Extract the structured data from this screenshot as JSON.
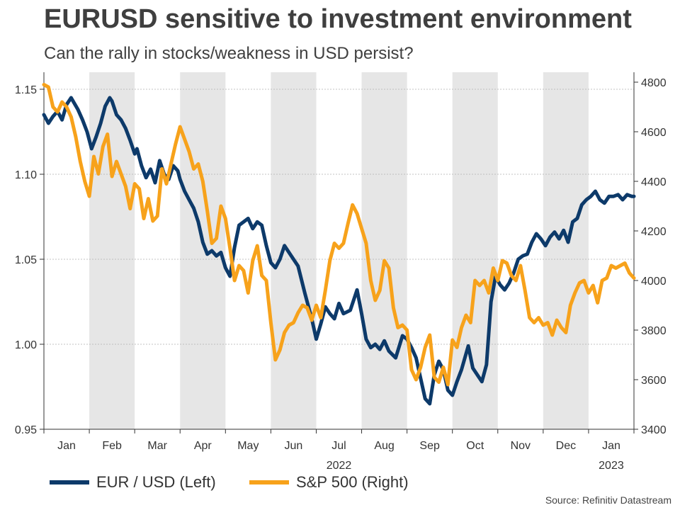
{
  "title": "EURUSD sensitive to investment environment",
  "subtitle": "Can the rally in stocks/weakness in USD persist?",
  "source": "Source: Refinitiv Datastream",
  "colors": {
    "eurusd": "#0d3a6a",
    "sp500": "#f7a21b",
    "band": "#e6e6e6",
    "grid": "#b0b0b0",
    "axis": "#333333"
  },
  "chart_data": {
    "type": "line",
    "months": [
      "Jan",
      "Feb",
      "Mar",
      "Apr",
      "May",
      "Jun",
      "Jul",
      "Aug",
      "Sep",
      "Oct",
      "Nov",
      "Dec",
      "Jan"
    ],
    "year_labels": [
      {
        "label": "2022",
        "month_index": 6
      },
      {
        "label": "2023",
        "month_index": 12
      }
    ],
    "left_axis": {
      "label": "EUR / USD (Left)",
      "ylim": [
        0.95,
        1.16
      ],
      "ticks": [
        "0.95",
        "1.00",
        "1.05",
        "1.10",
        "1.15"
      ]
    },
    "right_axis": {
      "label": "S&P 500 (Right)",
      "ylim": [
        3400,
        4840
      ],
      "ticks": [
        "3400",
        "3600",
        "3800",
        "4000",
        "4200",
        "4400",
        "4600",
        "4800"
      ]
    },
    "x_range": [
      0,
      13
    ],
    "series": [
      {
        "name": "EUR / USD (Left)",
        "axis": "left",
        "x": [
          0,
          0.1,
          0.2,
          0.3,
          0.4,
          0.5,
          0.6,
          0.75,
          0.85,
          0.95,
          1.05,
          1.15,
          1.25,
          1.35,
          1.45,
          1.5,
          1.6,
          1.7,
          1.8,
          1.9,
          2.0,
          2.05,
          2.15,
          2.25,
          2.35,
          2.45,
          2.55,
          2.65,
          2.75,
          2.85,
          2.95,
          3.0,
          3.1,
          3.2,
          3.3,
          3.4,
          3.5,
          3.6,
          3.7,
          3.8,
          3.9,
          4.0,
          4.1,
          4.2,
          4.3,
          4.4,
          4.5,
          4.6,
          4.7,
          4.8,
          4.9,
          5.0,
          5.1,
          5.2,
          5.3,
          5.45,
          5.6,
          5.75,
          5.9,
          6.0,
          6.1,
          6.2,
          6.3,
          6.4,
          6.5,
          6.6,
          6.75,
          6.9,
          7.0,
          7.1,
          7.2,
          7.3,
          7.4,
          7.5,
          7.6,
          7.75,
          7.9,
          8.0,
          8.1,
          8.2,
          8.3,
          8.4,
          8.5,
          8.6,
          8.7,
          8.8,
          8.9,
          9.0,
          9.1,
          9.2,
          9.35,
          9.45,
          9.55,
          9.65,
          9.75,
          9.85,
          9.95,
          10.05,
          10.15,
          10.25,
          10.35,
          10.45,
          10.55,
          10.65,
          10.75,
          10.85,
          10.95,
          11.05,
          11.15,
          11.25,
          11.35,
          11.45,
          11.55,
          11.65,
          11.75,
          11.85,
          11.95,
          12.05,
          12.15,
          12.25,
          12.35,
          12.45,
          12.55,
          12.65,
          12.75,
          12.85,
          12.95,
          13.0
        ],
        "values": [
          1.135,
          1.13,
          1.134,
          1.137,
          1.132,
          1.141,
          1.145,
          1.138,
          1.132,
          1.125,
          1.115,
          1.122,
          1.13,
          1.14,
          1.145,
          1.143,
          1.135,
          1.132,
          1.127,
          1.12,
          1.112,
          1.115,
          1.105,
          1.098,
          1.103,
          1.095,
          1.108,
          1.1,
          1.097,
          1.105,
          1.102,
          1.097,
          1.09,
          1.085,
          1.08,
          1.072,
          1.06,
          1.053,
          1.055,
          1.052,
          1.054,
          1.045,
          1.04,
          1.057,
          1.07,
          1.072,
          1.074,
          1.068,
          1.072,
          1.07,
          1.058,
          1.048,
          1.045,
          1.05,
          1.058,
          1.052,
          1.046,
          1.03,
          1.015,
          1.003,
          1.012,
          1.022,
          1.018,
          1.015,
          1.024,
          1.018,
          1.02,
          1.032,
          1.018,
          1.003,
          0.998,
          1.0,
          0.997,
          1.002,
          0.996,
          0.992,
          1.005,
          1.003,
          0.998,
          0.992,
          0.98,
          0.968,
          0.965,
          0.982,
          0.99,
          0.985,
          0.973,
          0.97,
          0.978,
          0.985,
          0.999,
          0.986,
          0.982,
          0.978,
          0.988,
          1.025,
          1.04,
          1.035,
          1.032,
          1.036,
          1.042,
          1.05,
          1.052,
          1.053,
          1.06,
          1.065,
          1.062,
          1.058,
          1.063,
          1.066,
          1.062,
          1.067,
          1.06,
          1.072,
          1.074,
          1.082,
          1.085,
          1.087,
          1.09,
          1.085,
          1.083,
          1.087,
          1.087,
          1.088,
          1.085,
          1.088,
          1.087,
          1.087
        ]
      },
      {
        "name": "S&P 500 (Right)",
        "axis": "right",
        "x": [
          0,
          0.1,
          0.2,
          0.3,
          0.4,
          0.5,
          0.6,
          0.7,
          0.8,
          0.9,
          1.0,
          1.1,
          1.2,
          1.3,
          1.4,
          1.5,
          1.6,
          1.7,
          1.8,
          1.9,
          2.0,
          2.1,
          2.2,
          2.3,
          2.4,
          2.5,
          2.6,
          2.7,
          2.8,
          2.9,
          3.0,
          3.1,
          3.2,
          3.3,
          3.4,
          3.5,
          3.6,
          3.7,
          3.8,
          3.9,
          4.0,
          4.1,
          4.2,
          4.3,
          4.4,
          4.5,
          4.6,
          4.7,
          4.8,
          4.9,
          5.0,
          5.1,
          5.2,
          5.3,
          5.4,
          5.5,
          5.6,
          5.7,
          5.8,
          5.9,
          6.0,
          6.1,
          6.2,
          6.3,
          6.4,
          6.5,
          6.6,
          6.7,
          6.8,
          6.9,
          7.0,
          7.1,
          7.2,
          7.3,
          7.4,
          7.5,
          7.6,
          7.7,
          7.8,
          7.9,
          8.0,
          8.1,
          8.2,
          8.3,
          8.4,
          8.5,
          8.6,
          8.7,
          8.8,
          8.9,
          9.0,
          9.1,
          9.2,
          9.3,
          9.4,
          9.5,
          9.6,
          9.7,
          9.8,
          9.9,
          10.0,
          10.1,
          10.2,
          10.3,
          10.4,
          10.5,
          10.6,
          10.7,
          10.8,
          10.9,
          11.0,
          11.1,
          11.2,
          11.3,
          11.4,
          11.5,
          11.6,
          11.7,
          11.8,
          11.9,
          12.0,
          12.1,
          12.2,
          12.3,
          12.4,
          12.5,
          12.6,
          12.7,
          12.8,
          12.9,
          13.0
        ],
        "values": [
          4790,
          4780,
          4700,
          4680,
          4720,
          4700,
          4660,
          4580,
          4480,
          4400,
          4340,
          4500,
          4430,
          4540,
          4590,
          4420,
          4480,
          4430,
          4380,
          4290,
          4390,
          4370,
          4250,
          4330,
          4240,
          4260,
          4450,
          4390,
          4470,
          4550,
          4620,
          4570,
          4520,
          4450,
          4470,
          4400,
          4280,
          4150,
          4170,
          4300,
          4250,
          4130,
          4000,
          4060,
          4040,
          3950,
          4080,
          4140,
          4020,
          4000,
          3830,
          3680,
          3720,
          3790,
          3820,
          3830,
          3870,
          3900,
          3890,
          3840,
          3900,
          3850,
          3960,
          4080,
          4150,
          4130,
          4150,
          4230,
          4305,
          4270,
          4210,
          4150,
          4000,
          3920,
          3960,
          4080,
          4050,
          3890,
          3810,
          3820,
          3800,
          3640,
          3600,
          3650,
          3730,
          3780,
          3610,
          3590,
          3650,
          3580,
          3760,
          3730,
          3810,
          3860,
          3830,
          4000,
          3980,
          4000,
          3950,
          4050,
          4000,
          4080,
          4070,
          4020,
          4000,
          4060,
          3960,
          3850,
          3830,
          3850,
          3820,
          3830,
          3780,
          3840,
          3810,
          3790,
          3900,
          3950,
          3990,
          4000,
          3950,
          3980,
          3910,
          4000,
          4010,
          4060,
          4050,
          4060,
          4070,
          4030,
          4010
        ]
      }
    ]
  }
}
